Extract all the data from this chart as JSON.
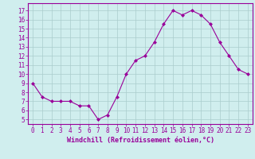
{
  "x": [
    0,
    1,
    2,
    3,
    4,
    5,
    6,
    7,
    8,
    9,
    10,
    11,
    12,
    13,
    14,
    15,
    16,
    17,
    18,
    19,
    20,
    21,
    22,
    23
  ],
  "y": [
    9.0,
    7.5,
    7.0,
    7.0,
    7.0,
    6.5,
    6.5,
    5.0,
    5.5,
    7.5,
    10.0,
    11.5,
    12.0,
    13.5,
    15.5,
    17.0,
    16.5,
    17.0,
    16.5,
    15.5,
    13.5,
    12.0,
    10.5,
    10.0
  ],
  "line_color": "#990099",
  "marker": "D",
  "marker_size": 2.0,
  "bg_color": "#d0eeee",
  "grid_color": "#aacccc",
  "xlabel": "Windchill (Refroidissement éolien,°C)",
  "xlabel_fontsize": 6.0,
  "yticks": [
    5,
    6,
    7,
    8,
    9,
    10,
    11,
    12,
    13,
    14,
    15,
    16,
    17
  ],
  "xtick_labels": [
    "0",
    "1",
    "2",
    "3",
    "4",
    "5",
    "6",
    "7",
    "8",
    "9",
    "10",
    "11",
    "12",
    "13",
    "14",
    "15",
    "16",
    "17",
    "18",
    "19",
    "20",
    "21",
    "22",
    "23"
  ],
  "ylim": [
    4.5,
    17.8
  ],
  "xlim": [
    -0.5,
    23.5
  ],
  "tick_color": "#990099",
  "tick_fontsize": 5.5,
  "spine_color": "#990099",
  "linewidth": 0.8
}
